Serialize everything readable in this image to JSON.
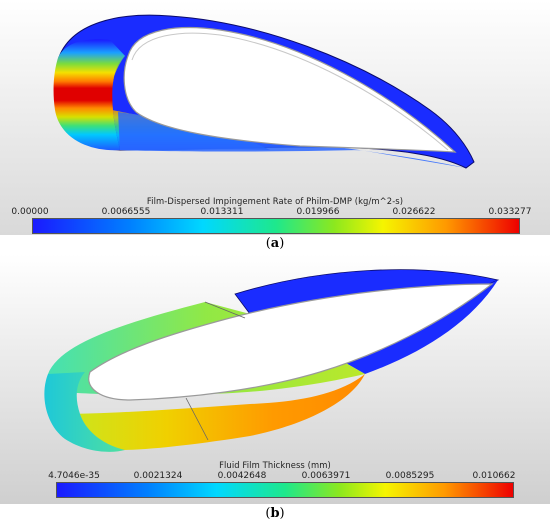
{
  "panel_a": {
    "caption_open": "(",
    "caption_letter": "a",
    "caption_close": ")",
    "colorbar_title": "Film-Dispersed Impingement Rate of Philm-DMP (kg/m^2-s)",
    "ticks": [
      "0.00000",
      "0.0066555",
      "0.013311",
      "0.019966",
      "0.026622",
      "0.033277"
    ]
  },
  "panel_b": {
    "caption_open": "(",
    "caption_letter": "b",
    "caption_close": ")",
    "colorbar_title": "Fluid Film Thickness (mm)",
    "ticks": [
      "4.7046e-35",
      "0.0021324",
      "0.0042648",
      "0.0063971",
      "0.0085295",
      "0.010662"
    ]
  },
  "colors": {
    "jet_blue": "#1a1aff",
    "jet_cyan": "#00d8ff",
    "jet_green": "#1ee81e",
    "jet_yellow": "#f5f500",
    "jet_orange": "#ff9900",
    "jet_red": "#ee0000"
  }
}
